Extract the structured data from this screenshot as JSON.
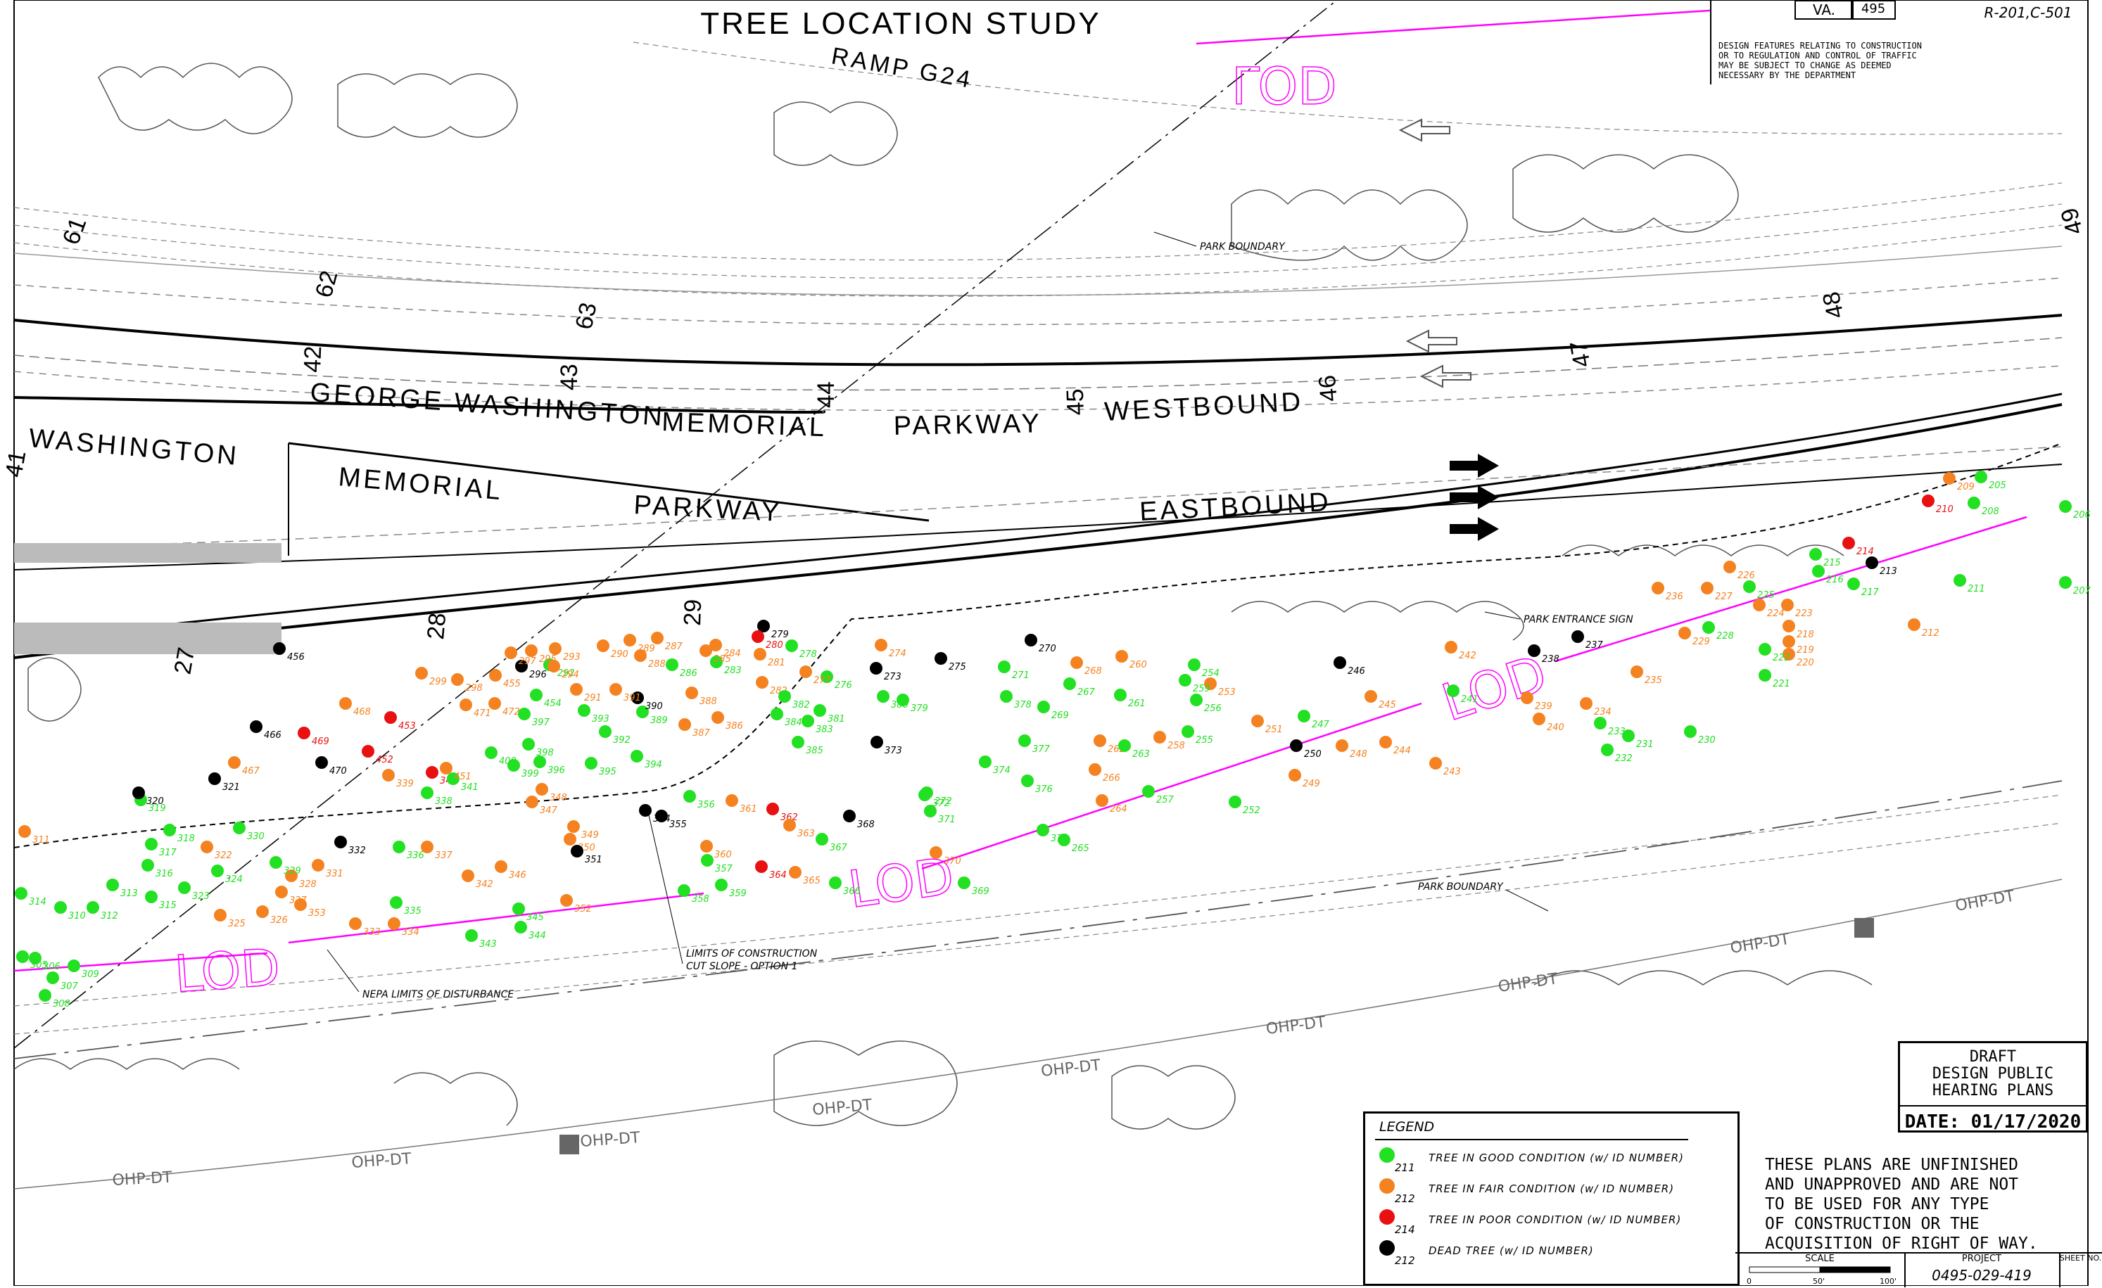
{
  "title": "TREE LOCATION STUDY",
  "title_block": {
    "state": "VA.",
    "route": "495",
    "sheet_ref": "R-201,C-501",
    "note": "DESIGN FEATURES RELATING TO CONSTRUCTION\nOR TO REGULATION AND CONTROL OF TRAFFIC\nMAY BE SUBJECT TO CHANGE AS DEEMED\nNECESSARY BY THE DEPARTMENT"
  },
  "roads": {
    "gw_westbound": [
      "GEORGE WASHINGTON",
      "MEMORIAL",
      "PARKWAY",
      "WESTBOUND"
    ],
    "gw_eastbound_left": "WASHINGTON",
    "gw_eastbound": [
      "MEMORIAL",
      "PARKWAY",
      "EASTBOUND"
    ],
    "ramp": "RAMP G24"
  },
  "stations_upper": [
    "61",
    "62",
    "63",
    "42",
    "43",
    "44",
    "45",
    "46",
    "47",
    "48",
    "49"
  ],
  "stations_lower": [
    "41",
    "27",
    "28",
    "29"
  ],
  "annotations": {
    "park_boundary_top": "PARK BOUNDARY",
    "park_entrance_sign": "PARK ENTRANCE SIGN",
    "park_boundary_bottom": "PARK BOUNDARY",
    "nepa": "NEPA LIMITS OF DISTURBANCE",
    "limits_construction": [
      "LIMITS OF CONSTRUCTION",
      "CUT SLOPE - OPTION 1"
    ],
    "lod": "LOD",
    "ohp": "OHP-DT"
  },
  "legend": {
    "title": "LEGEND",
    "items": [
      {
        "label": "TREE IN GOOD CONDITION (w/ ID NUMBER)",
        "sample": "211",
        "color": "#22e022"
      },
      {
        "label": "TREE IN FAIR CONDITION (w/ ID NUMBER)",
        "sample": "212",
        "color": "#f58220"
      },
      {
        "label": "TREE IN POOR CONDITION (w/ ID NUMBER)",
        "sample": "214",
        "color": "#e81010"
      },
      {
        "label": "DEAD TREE (w/ ID NUMBER)",
        "sample": "212",
        "color": "#000000"
      }
    ]
  },
  "draft_box": {
    "lines": [
      "DRAFT",
      "DESIGN PUBLIC",
      "HEARING PLANS"
    ],
    "date": "DATE: 01/17/2020"
  },
  "warning": "THESE PLANS ARE UNFINISHED\nAND UNAPPROVED AND ARE NOT\nTO BE USED FOR ANY TYPE\nOF CONSTRUCTION OR THE\nACQUISITION OF RIGHT OF WAY.",
  "bottom_block": {
    "scale_label": "SCALE",
    "scale_ticks": [
      "0",
      "50'",
      "100'"
    ],
    "project_label": "PROJECT",
    "project_number": "0495-029-419",
    "sheet_label": "SHEET NO."
  },
  "colors": {
    "good": "#22e022",
    "fair": "#f58220",
    "poor": "#e81010",
    "dead": "#000000",
    "lod": "#ff00ff"
  },
  "trees": [
    {
      "id": "205",
      "c": "good"
    },
    {
      "id": "206",
      "c": "good"
    },
    {
      "id": "207",
      "c": "good"
    },
    {
      "id": "208",
      "c": "good"
    },
    {
      "id": "209",
      "c": "fair"
    },
    {
      "id": "210",
      "c": "poor"
    },
    {
      "id": "211",
      "c": "good"
    },
    {
      "id": "212",
      "c": "fair"
    },
    {
      "id": "213",
      "c": "dead"
    },
    {
      "id": "214",
      "c": "poor"
    },
    {
      "id": "215",
      "c": "good"
    },
    {
      "id": "216",
      "c": "good"
    },
    {
      "id": "217",
      "c": "good"
    },
    {
      "id": "218",
      "c": "fair"
    },
    {
      "id": "219",
      "c": "fair"
    },
    {
      "id": "220",
      "c": "fair"
    },
    {
      "id": "221",
      "c": "good"
    },
    {
      "id": "222",
      "c": "good"
    },
    {
      "id": "223",
      "c": "fair"
    },
    {
      "id": "224",
      "c": "fair"
    },
    {
      "id": "225",
      "c": "good"
    },
    {
      "id": "226",
      "c": "fair"
    },
    {
      "id": "227",
      "c": "fair"
    },
    {
      "id": "228",
      "c": "good"
    },
    {
      "id": "229",
      "c": "fair"
    },
    {
      "id": "230",
      "c": "good"
    },
    {
      "id": "231",
      "c": "good"
    },
    {
      "id": "232",
      "c": "good"
    },
    {
      "id": "233",
      "c": "good"
    },
    {
      "id": "234",
      "c": "fair"
    },
    {
      "id": "235",
      "c": "fair"
    },
    {
      "id": "236",
      "c": "fair"
    },
    {
      "id": "237",
      "c": "dead"
    },
    {
      "id": "238",
      "c": "dead"
    },
    {
      "id": "239",
      "c": "fair"
    },
    {
      "id": "240",
      "c": "fair"
    },
    {
      "id": "241",
      "c": "good"
    },
    {
      "id": "242",
      "c": "fair"
    },
    {
      "id": "243",
      "c": "fair"
    },
    {
      "id": "244",
      "c": "fair"
    },
    {
      "id": "245",
      "c": "fair"
    },
    {
      "id": "246",
      "c": "dead"
    },
    {
      "id": "247",
      "c": "good"
    },
    {
      "id": "248",
      "c": "fair"
    },
    {
      "id": "249",
      "c": "fair"
    },
    {
      "id": "250",
      "c": "dead"
    },
    {
      "id": "251",
      "c": "fair"
    },
    {
      "id": "252",
      "c": "good"
    },
    {
      "id": "253",
      "c": "fair"
    },
    {
      "id": "254",
      "c": "good"
    },
    {
      "id": "255",
      "c": "good"
    },
    {
      "id": "256",
      "c": "good"
    },
    {
      "id": "257",
      "c": "good"
    },
    {
      "id": "258",
      "c": "fair"
    },
    {
      "id": "259",
      "c": "good"
    },
    {
      "id": "260",
      "c": "fair"
    },
    {
      "id": "261",
      "c": "good"
    },
    {
      "id": "262",
      "c": "fair"
    },
    {
      "id": "263",
      "c": "good"
    },
    {
      "id": "264",
      "c": "fair"
    },
    {
      "id": "265",
      "c": "good"
    },
    {
      "id": "266",
      "c": "fair"
    },
    {
      "id": "267",
      "c": "good"
    },
    {
      "id": "268",
      "c": "fair"
    },
    {
      "id": "269",
      "c": "good"
    },
    {
      "id": "270",
      "c": "dead"
    },
    {
      "id": "271",
      "c": "good"
    },
    {
      "id": "272",
      "c": "good"
    },
    {
      "id": "273",
      "c": "dead"
    },
    {
      "id": "274",
      "c": "fair"
    },
    {
      "id": "275",
      "c": "dead"
    },
    {
      "id": "276",
      "c": "good"
    },
    {
      "id": "277",
      "c": "fair"
    },
    {
      "id": "278",
      "c": "good"
    },
    {
      "id": "279",
      "c": "dead"
    },
    {
      "id": "280",
      "c": "poor"
    },
    {
      "id": "281",
      "c": "fair"
    },
    {
      "id": "282",
      "c": "fair"
    },
    {
      "id": "283",
      "c": "good"
    },
    {
      "id": "284",
      "c": "fair"
    },
    {
      "id": "285",
      "c": "fair"
    },
    {
      "id": "286",
      "c": "good"
    },
    {
      "id": "287",
      "c": "fair"
    },
    {
      "id": "288",
      "c": "fair"
    },
    {
      "id": "289",
      "c": "fair"
    },
    {
      "id": "290",
      "c": "fair"
    },
    {
      "id": "291",
      "c": "fair"
    },
    {
      "id": "292",
      "c": "good"
    },
    {
      "id": "293",
      "c": "fair"
    },
    {
      "id": "294",
      "c": "fair"
    },
    {
      "id": "295",
      "c": "fair"
    },
    {
      "id": "296",
      "c": "dead"
    },
    {
      "id": "297",
      "c": "fair"
    },
    {
      "id": "298",
      "c": "fair"
    },
    {
      "id": "299",
      "c": "fair"
    },
    {
      "id": "305",
      "c": "good"
    },
    {
      "id": "306",
      "c": "good"
    },
    {
      "id": "307",
      "c": "good"
    },
    {
      "id": "308",
      "c": "good"
    },
    {
      "id": "309",
      "c": "good"
    },
    {
      "id": "310",
      "c": "good"
    },
    {
      "id": "311",
      "c": "fair"
    },
    {
      "id": "312",
      "c": "good"
    },
    {
      "id": "313",
      "c": "good"
    },
    {
      "id": "314",
      "c": "good"
    },
    {
      "id": "315",
      "c": "good"
    },
    {
      "id": "316",
      "c": "good"
    },
    {
      "id": "317",
      "c": "good"
    },
    {
      "id": "318",
      "c": "good"
    },
    {
      "id": "319",
      "c": "good"
    },
    {
      "id": "320",
      "c": "dead"
    },
    {
      "id": "321",
      "c": "dead"
    },
    {
      "id": "322",
      "c": "fair"
    },
    {
      "id": "323",
      "c": "good"
    },
    {
      "id": "324",
      "c": "good"
    },
    {
      "id": "325",
      "c": "fair"
    },
    {
      "id": "326",
      "c": "fair"
    },
    {
      "id": "327",
      "c": "fair"
    },
    {
      "id": "328",
      "c": "fair"
    },
    {
      "id": "329",
      "c": "good"
    },
    {
      "id": "330",
      "c": "good"
    },
    {
      "id": "331",
      "c": "fair"
    },
    {
      "id": "332",
      "c": "dead"
    },
    {
      "id": "333",
      "c": "fair"
    },
    {
      "id": "334",
      "c": "fair"
    },
    {
      "id": "335",
      "c": "good"
    },
    {
      "id": "336",
      "c": "good"
    },
    {
      "id": "337",
      "c": "fair"
    },
    {
      "id": "338",
      "c": "good"
    },
    {
      "id": "339",
      "c": "fair"
    },
    {
      "id": "340",
      "c": "poor"
    },
    {
      "id": "341",
      "c": "good"
    },
    {
      "id": "342",
      "c": "fair"
    },
    {
      "id": "343",
      "c": "good"
    },
    {
      "id": "344",
      "c": "good"
    },
    {
      "id": "345",
      "c": "good"
    },
    {
      "id": "346",
      "c": "fair"
    },
    {
      "id": "347",
      "c": "fair"
    },
    {
      "id": "348",
      "c": "fair"
    },
    {
      "id": "349",
      "c": "fair"
    },
    {
      "id": "350",
      "c": "fair"
    },
    {
      "id": "351",
      "c": "dead"
    },
    {
      "id": "352",
      "c": "fair"
    },
    {
      "id": "353",
      "c": "fair"
    },
    {
      "id": "354",
      "c": "dead"
    },
    {
      "id": "355",
      "c": "dead"
    },
    {
      "id": "356",
      "c": "good"
    },
    {
      "id": "357",
      "c": "good"
    },
    {
      "id": "358",
      "c": "good"
    },
    {
      "id": "359",
      "c": "good"
    },
    {
      "id": "360",
      "c": "fair"
    },
    {
      "id": "361",
      "c": "fair"
    },
    {
      "id": "362",
      "c": "poor"
    },
    {
      "id": "363",
      "c": "fair"
    },
    {
      "id": "364",
      "c": "poor"
    },
    {
      "id": "365",
      "c": "fair"
    },
    {
      "id": "366",
      "c": "good"
    },
    {
      "id": "367",
      "c": "good"
    },
    {
      "id": "368",
      "c": "dead"
    },
    {
      "id": "369",
      "c": "good"
    },
    {
      "id": "370",
      "c": "fair"
    },
    {
      "id": "371",
      "c": "good"
    },
    {
      "id": "372",
      "c": "good"
    },
    {
      "id": "373",
      "c": "dead"
    },
    {
      "id": "374",
      "c": "good"
    },
    {
      "id": "375",
      "c": "good"
    },
    {
      "id": "376",
      "c": "good"
    },
    {
      "id": "377",
      "c": "good"
    },
    {
      "id": "378",
      "c": "good"
    },
    {
      "id": "379",
      "c": "good"
    },
    {
      "id": "380",
      "c": "good"
    },
    {
      "id": "381",
      "c": "good"
    },
    {
      "id": "382",
      "c": "good"
    },
    {
      "id": "383",
      "c": "good"
    },
    {
      "id": "384",
      "c": "good"
    },
    {
      "id": "385",
      "c": "good"
    },
    {
      "id": "386",
      "c": "fair"
    },
    {
      "id": "387",
      "c": "fair"
    },
    {
      "id": "388",
      "c": "fair"
    },
    {
      "id": "389",
      "c": "good"
    },
    {
      "id": "390",
      "c": "dead"
    },
    {
      "id": "391",
      "c": "fair"
    },
    {
      "id": "392",
      "c": "good"
    },
    {
      "id": "393",
      "c": "good"
    },
    {
      "id": "394",
      "c": "good"
    },
    {
      "id": "395",
      "c": "good"
    },
    {
      "id": "396",
      "c": "good"
    },
    {
      "id": "397",
      "c": "good"
    },
    {
      "id": "398",
      "c": "good"
    },
    {
      "id": "399",
      "c": "good"
    },
    {
      "id": "400",
      "c": "good"
    },
    {
      "id": "451",
      "c": "fair"
    },
    {
      "id": "452",
      "c": "poor"
    },
    {
      "id": "453",
      "c": "poor"
    },
    {
      "id": "454",
      "c": "good"
    },
    {
      "id": "455",
      "c": "fair"
    },
    {
      "id": "456",
      "c": "dead"
    },
    {
      "id": "466",
      "c": "dead"
    },
    {
      "id": "467",
      "c": "fair"
    },
    {
      "id": "468",
      "c": "fair"
    },
    {
      "id": "469",
      "c": "poor"
    },
    {
      "id": "470",
      "c": "dead"
    },
    {
      "id": "471",
      "c": "fair"
    },
    {
      "id": "472",
      "c": "fair"
    }
  ]
}
